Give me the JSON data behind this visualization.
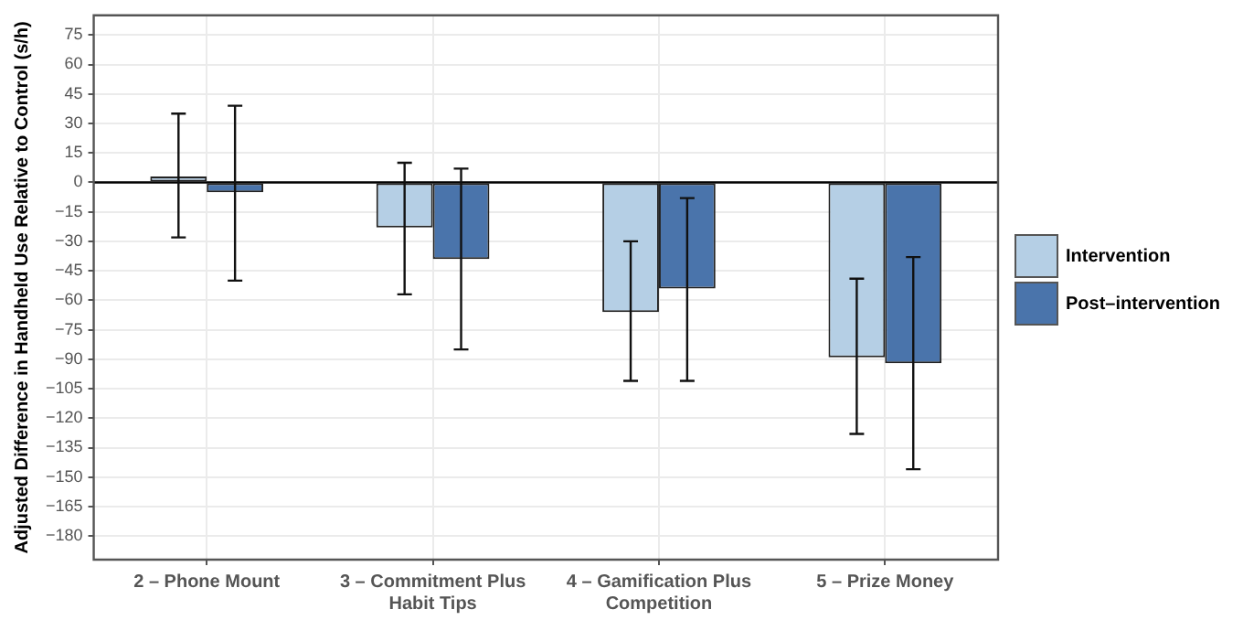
{
  "chart_data": {
    "type": "bar",
    "ylabel": "Adjusted Difference in Handheld Use Relative to Control (s/h)",
    "categories": [
      "2 – Phone Mount",
      "3 – Commitment Plus Habit Tips",
      "4 – Gamification Plus Competition",
      "5 – Prize Money"
    ],
    "series": [
      {
        "name": "Intervention",
        "color": "#b5cfe5",
        "values": [
          3,
          -23,
          -66,
          -89
        ],
        "errors": [
          [
            -28,
            35
          ],
          [
            -57,
            10
          ],
          [
            -101,
            -30
          ],
          [
            -128,
            -49
          ]
        ]
      },
      {
        "name": "Post–intervention",
        "color": "#4a74ab",
        "values": [
          -5,
          -39,
          -54,
          -92
        ],
        "errors": [
          [
            -50,
            39
          ],
          [
            -85,
            7
          ],
          [
            -101,
            -8
          ],
          [
            -146,
            -38
          ]
        ]
      }
    ],
    "ylim": [
      -192,
      85
    ],
    "yticks": [
      -180,
      -165,
      -150,
      -135,
      -120,
      -105,
      -90,
      -75,
      -60,
      -45,
      -30,
      -15,
      0,
      15,
      30,
      45,
      60,
      75
    ],
    "ref_lines": [
      {
        "axis": "y",
        "value": 0,
        "color": "#000000"
      }
    ],
    "grid": true,
    "legend": "right"
  }
}
